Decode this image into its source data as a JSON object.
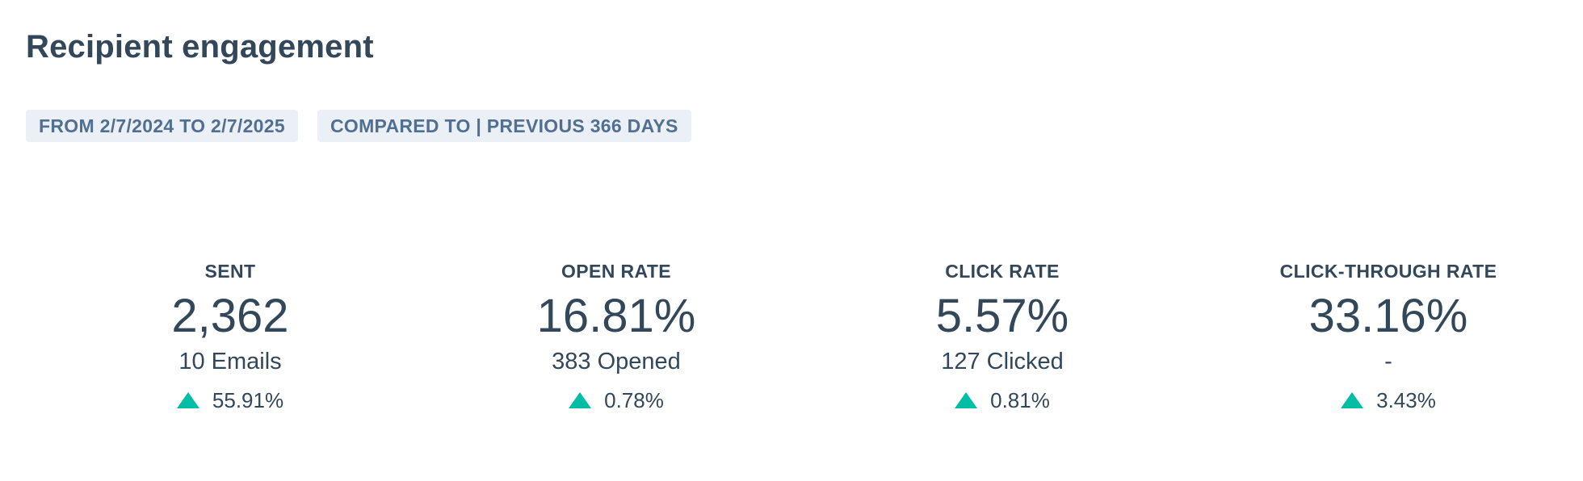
{
  "title": "Recipient engagement",
  "filters": {
    "date_range": "FROM 2/7/2024 TO 2/7/2025",
    "comparison": "COMPARED TO | PREVIOUS 366 DAYS"
  },
  "colors": {
    "positive": "#00bda5",
    "pill_bg": "#eaf0f6",
    "pill_text": "#516f90",
    "text": "#33475b"
  },
  "metrics": [
    {
      "label": "SENT",
      "value": "2,362",
      "sub": "10 Emails",
      "change": "55.91%",
      "direction": "up",
      "icon": "triangle-up-icon"
    },
    {
      "label": "OPEN RATE",
      "value": "16.81%",
      "sub": "383 Opened",
      "change": "0.78%",
      "direction": "up",
      "icon": "triangle-up-icon"
    },
    {
      "label": "CLICK RATE",
      "value": "5.57%",
      "sub": "127 Clicked",
      "change": "0.81%",
      "direction": "up",
      "icon": "triangle-up-icon"
    },
    {
      "label": "CLICK-THROUGH RATE",
      "value": "33.16%",
      "sub": "-",
      "change": "3.43%",
      "direction": "up",
      "icon": "triangle-up-icon"
    }
  ]
}
